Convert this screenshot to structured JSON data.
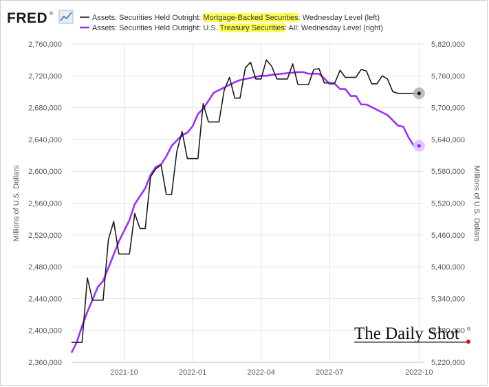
{
  "brand": {
    "logo_text": "FRED",
    "logo_mark": "®",
    "logo_icon": "sparkline-chart-icon",
    "watermark": "The Daily Shot",
    "watermark_mark": "®"
  },
  "colors": {
    "mbs_line": "#1a1a1a",
    "treasury_line": "#9b2fff",
    "highlight": "#ffff55",
    "grid": "#e3e3e3",
    "mbs_marker": "#b0b0b0",
    "treasury_marker": "#e2c2ff",
    "watermark_dot": "#d01010"
  },
  "chart_data": {
    "type": "line",
    "title": "",
    "legend_position": "top-left",
    "legend": [
      {
        "series": "mbs",
        "parts": [
          {
            "text": "Assets: Securities Held Outright: ",
            "highlight": false
          },
          {
            "text": "Mortgage-Backed Securities",
            "highlight": true
          },
          {
            "text": ": Wednesday Level (left)",
            "highlight": false
          }
        ]
      },
      {
        "series": "treasury",
        "parts": [
          {
            "text": "Assets: Securities Held Outright: U.S. ",
            "highlight": false
          },
          {
            "text": "Treasury Securities",
            "highlight": true
          },
          {
            "text": ": All: Wednesday Level (right)",
            "highlight": false
          }
        ]
      }
    ],
    "y_left": {
      "label": "Millions of U.S. Dollars",
      "ylim": [
        2360000,
        2760000
      ],
      "ticks": [
        2360000,
        2400000,
        2440000,
        2480000,
        2520000,
        2560000,
        2600000,
        2640000,
        2680000,
        2720000,
        2760000
      ],
      "tick_labels": [
        "2,360,000",
        "2,400,000",
        "2,440,000",
        "2,480,000",
        "2,520,000",
        "2,560,000",
        "2,600,000",
        "2,640,000",
        "2,680,000",
        "2,720,000",
        "2,760,000"
      ]
    },
    "y_right": {
      "label": "Millions of U.S. Dollars",
      "ylim": [
        5220000,
        5820000
      ],
      "ticks": [
        5220000,
        5280000,
        5340000,
        5400000,
        5460000,
        5520000,
        5580000,
        5640000,
        5700000,
        5760000,
        5820000
      ],
      "tick_labels": [
        "5,220,000",
        "5,280,000",
        "5,340,000",
        "5,400,000",
        "5,460,000",
        "5,520,000",
        "5,580,000",
        "5,640,000",
        "5,700,000",
        "5,760,000",
        "5,820,000"
      ]
    },
    "x": {
      "range_weeks": [
        0,
        67
      ],
      "ticks": [
        10,
        23,
        36,
        49,
        66
      ],
      "tick_labels": [
        "2021-10",
        "2022-01",
        "2022-04",
        "2022-07",
        "2022-10"
      ],
      "grid": true
    },
    "series": [
      {
        "name": "Mortgage-Backed Securities",
        "axis": "left",
        "x": [
          0,
          1,
          2,
          3,
          4,
          5,
          6,
          7,
          8,
          9,
          10,
          11,
          12,
          13,
          14,
          15,
          16,
          17,
          18,
          19,
          20,
          21,
          22,
          23,
          24,
          25,
          26,
          27,
          28,
          29,
          30,
          31,
          32,
          33,
          34,
          35,
          36,
          37,
          38,
          39,
          40,
          41,
          42,
          43,
          44,
          45,
          46,
          47,
          48,
          49,
          50,
          51,
          52,
          53,
          54,
          55,
          56,
          57,
          58,
          59,
          60,
          61,
          62,
          63,
          64,
          65,
          66
        ],
        "values": [
          2385000,
          2385000,
          2385000,
          2466000,
          2438000,
          2438000,
          2438000,
          2514000,
          2537000,
          2496000,
          2496000,
          2496000,
          2547000,
          2528000,
          2528000,
          2593000,
          2603000,
          2608000,
          2571000,
          2571000,
          2625000,
          2650000,
          2616000,
          2616000,
          2616000,
          2685000,
          2662000,
          2662000,
          2662000,
          2702000,
          2718000,
          2692000,
          2692000,
          2730000,
          2737000,
          2716000,
          2716000,
          2740000,
          2732000,
          2716000,
          2716000,
          2716000,
          2735000,
          2709000,
          2709000,
          2709000,
          2728000,
          2729000,
          2711000,
          2711000,
          2711000,
          2727000,
          2718000,
          2718000,
          2718000,
          2728000,
          2726000,
          2710000,
          2710000,
          2720000,
          2716000,
          2700000,
          2698000,
          2698000,
          2698000,
          2698000,
          2698000
        ]
      },
      {
        "name": "U.S. Treasury Securities",
        "axis": "right",
        "x": [
          0,
          1,
          2,
          3,
          4,
          5,
          6,
          7,
          8,
          9,
          10,
          11,
          12,
          13,
          14,
          15,
          16,
          17,
          18,
          19,
          20,
          21,
          22,
          23,
          24,
          25,
          26,
          27,
          28,
          29,
          30,
          31,
          32,
          33,
          34,
          35,
          36,
          37,
          38,
          39,
          40,
          41,
          42,
          43,
          44,
          45,
          46,
          47,
          48,
          49,
          50,
          51,
          52,
          53,
          54,
          55,
          56,
          57,
          58,
          59,
          60,
          61,
          62,
          63,
          64,
          65,
          66
        ],
        "values": [
          5238000,
          5258000,
          5288000,
          5315000,
          5338000,
          5362000,
          5373000,
          5398000,
          5423000,
          5448000,
          5468000,
          5488000,
          5518000,
          5533000,
          5548000,
          5573000,
          5588000,
          5593000,
          5608000,
          5628000,
          5638000,
          5648000,
          5653000,
          5665000,
          5688000,
          5698000,
          5713000,
          5728000,
          5733000,
          5738000,
          5743000,
          5748000,
          5752000,
          5754000,
          5756000,
          5758000,
          5760000,
          5760000,
          5762000,
          5763000,
          5764000,
          5765000,
          5766000,
          5767000,
          5767000,
          5764000,
          5764000,
          5764000,
          5755000,
          5745000,
          5745000,
          5735000,
          5735000,
          5722000,
          5722000,
          5706000,
          5706000,
          5701000,
          5696000,
          5691000,
          5686000,
          5676000,
          5666000,
          5664000,
          5644000,
          5628000,
          5628000
        ]
      }
    ]
  }
}
